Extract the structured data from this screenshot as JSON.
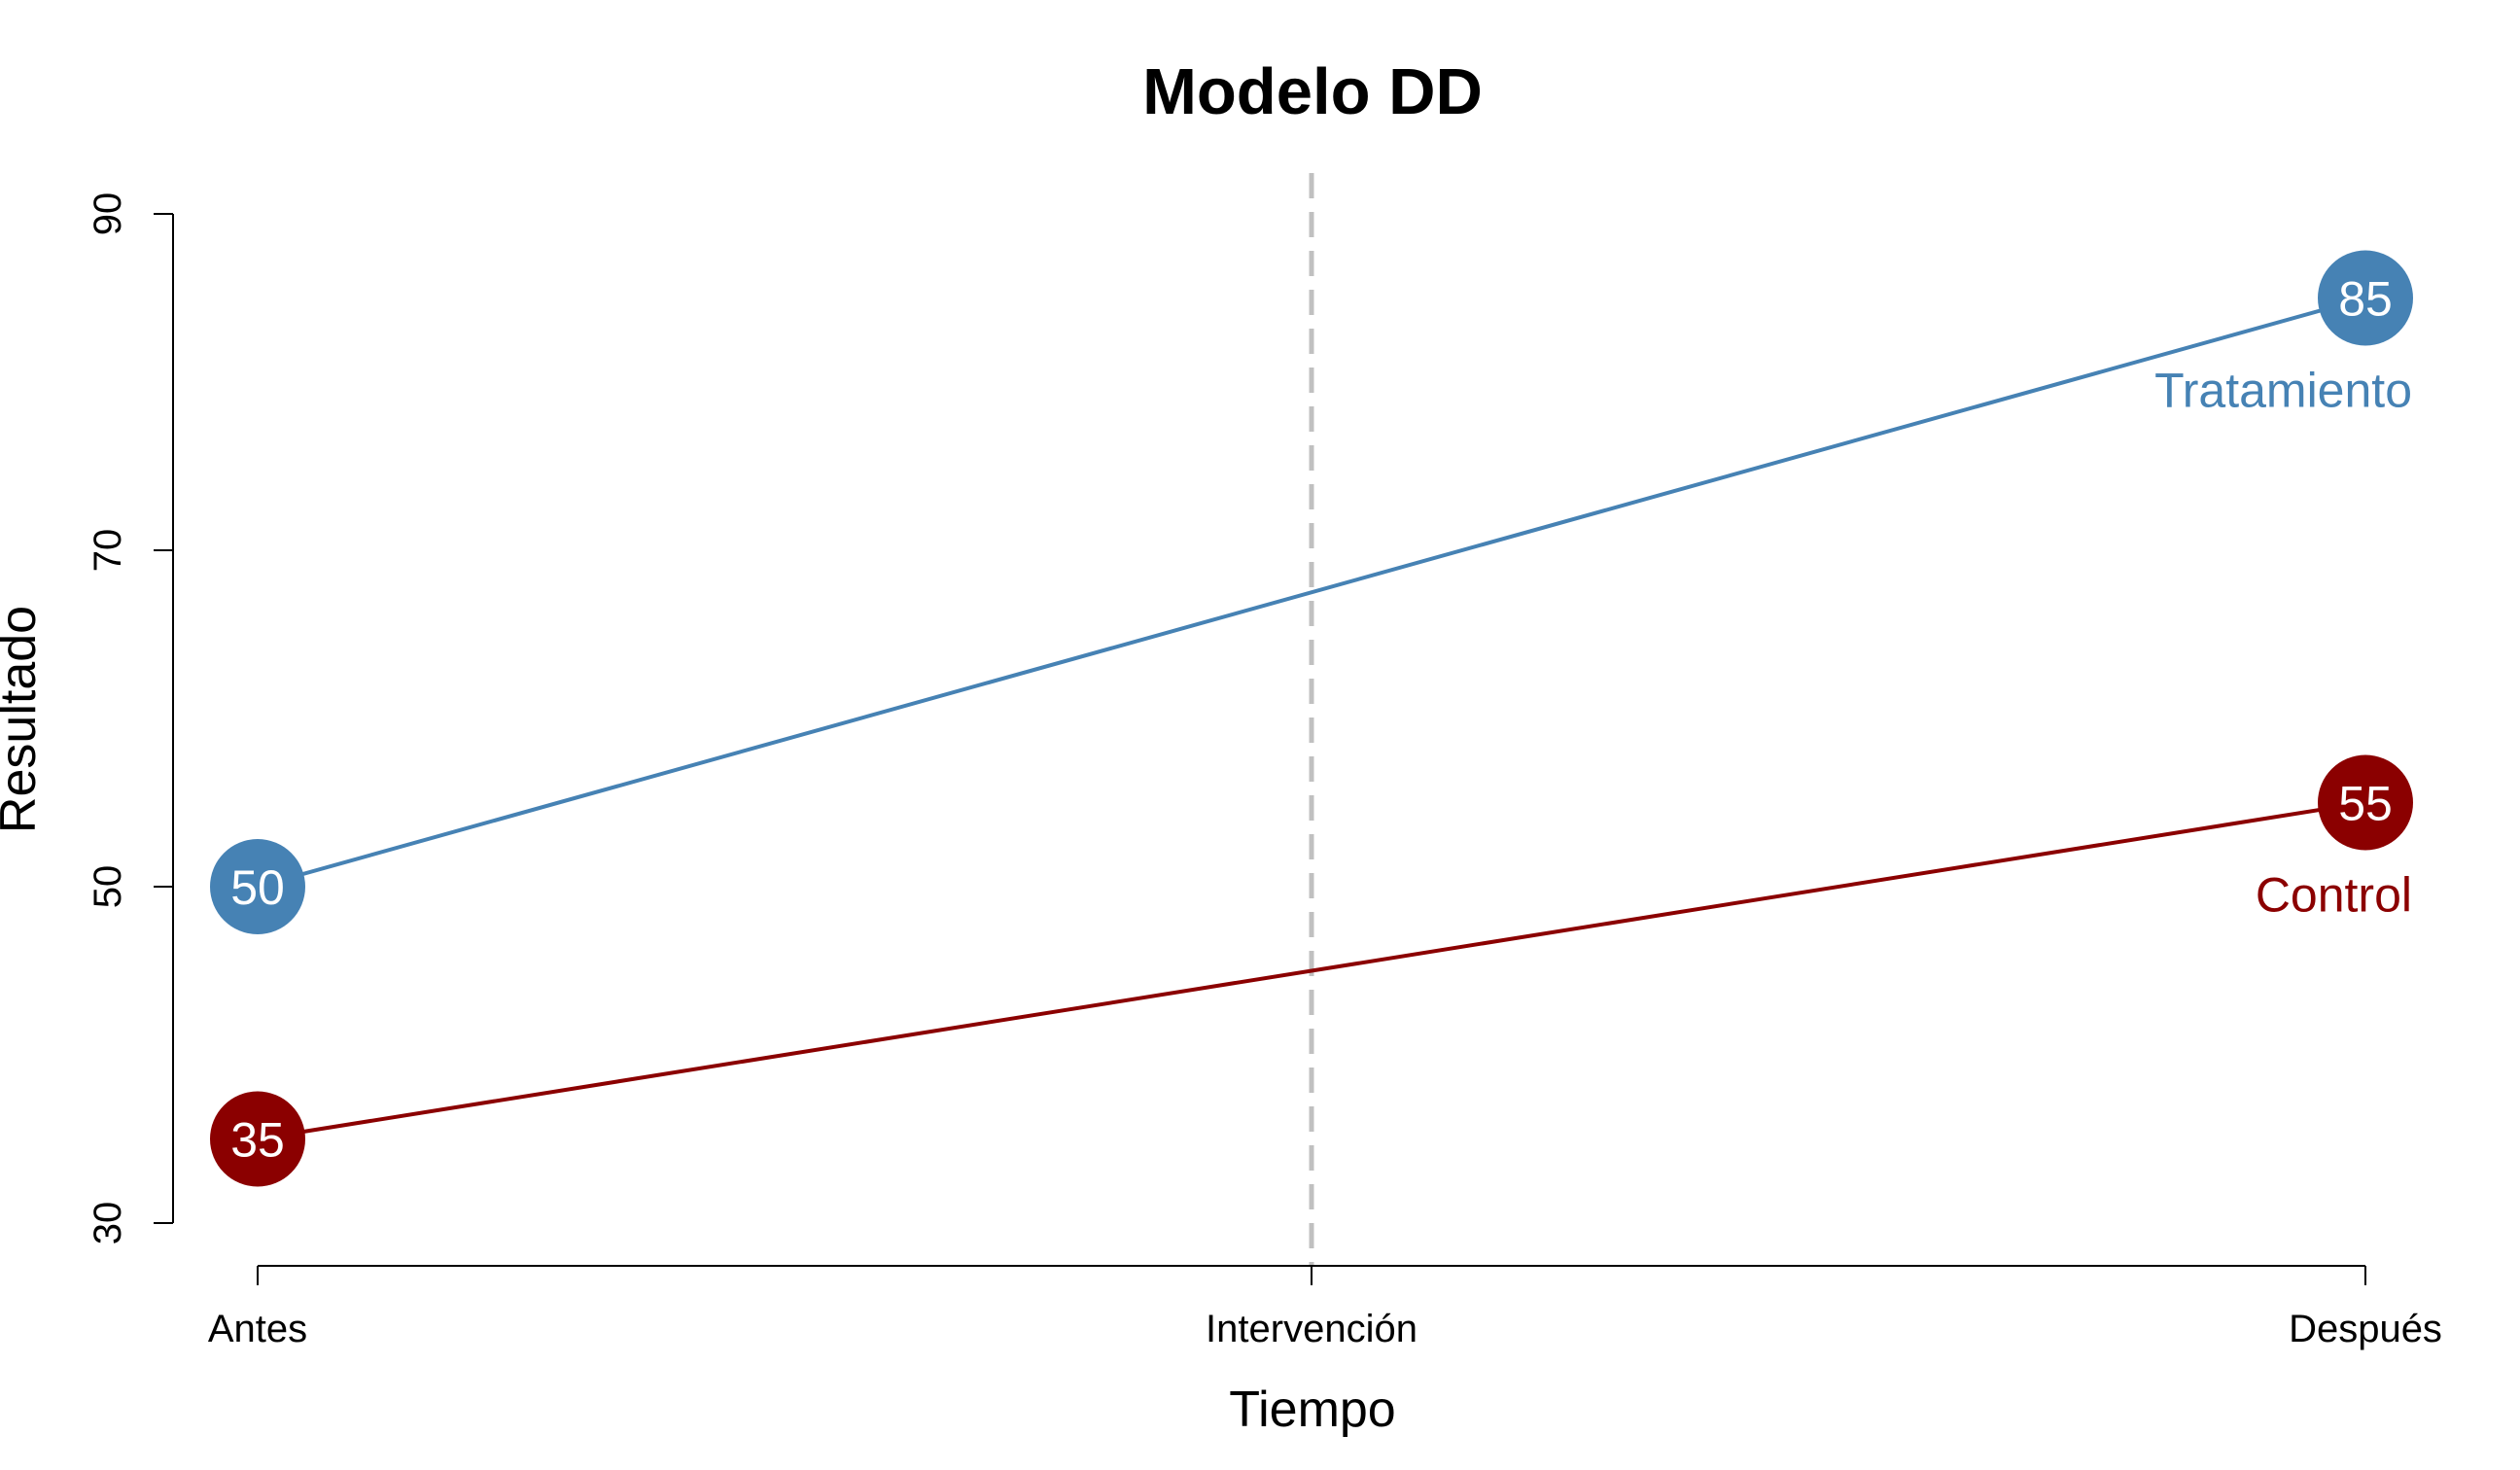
{
  "chart_data": {
    "type": "line",
    "title": "Modelo DD",
    "xlabel": "Tiempo",
    "ylabel": "Resultado",
    "categories": [
      "Antes",
      "Intervención",
      "Después"
    ],
    "x_positions": [
      0,
      0.5,
      1
    ],
    "ylim": [
      30,
      90
    ],
    "yticks": [
      30,
      50,
      70,
      90
    ],
    "grid": false,
    "legend": "none",
    "intervention_line": {
      "x": 0.5,
      "color": "#c0c0c0",
      "style": "dashed"
    },
    "series": [
      {
        "name": "Tratamiento",
        "color": "#4682b4",
        "x": [
          0,
          1
        ],
        "values": [
          50,
          85
        ]
      },
      {
        "name": "Control",
        "color": "#8b0000",
        "x": [
          0,
          1
        ],
        "values": [
          35,
          55
        ]
      }
    ]
  }
}
